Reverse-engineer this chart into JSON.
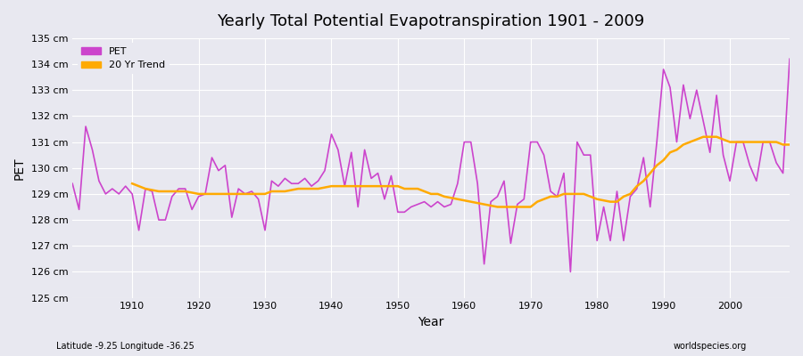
{
  "title": "Yearly Total Potential Evapotranspiration 1901 - 2009",
  "xlabel": "Year",
  "ylabel": "PET",
  "subtitle_left": "Latitude -9.25 Longitude -36.25",
  "subtitle_right": "worldspecies.org",
  "ylim": [
    125,
    135
  ],
  "ytick_labels": [
    "125 cm",
    "126 cm",
    "127 cm",
    "128 cm",
    "129 cm",
    "130 cm",
    "131 cm",
    "132 cm",
    "133 cm",
    "134 cm",
    "135 cm"
  ],
  "ytick_values": [
    125,
    126,
    127,
    128,
    129,
    130,
    131,
    132,
    133,
    134,
    135
  ],
  "xlim": [
    1901,
    2009
  ],
  "pet_color": "#cc44cc",
  "trend_color": "#ffaa00",
  "bg_color": "#e8e8f0",
  "grid_color": "#ffffff",
  "legend_pet": "PET",
  "legend_trend": "20 Yr Trend",
  "years": [
    1901,
    1902,
    1903,
    1904,
    1905,
    1906,
    1907,
    1908,
    1909,
    1910,
    1911,
    1912,
    1913,
    1914,
    1915,
    1916,
    1917,
    1918,
    1919,
    1920,
    1921,
    1922,
    1923,
    1924,
    1925,
    1926,
    1927,
    1928,
    1929,
    1930,
    1931,
    1932,
    1933,
    1934,
    1935,
    1936,
    1937,
    1938,
    1939,
    1940,
    1941,
    1942,
    1943,
    1944,
    1945,
    1946,
    1947,
    1948,
    1949,
    1950,
    1951,
    1952,
    1953,
    1954,
    1955,
    1956,
    1957,
    1958,
    1959,
    1960,
    1961,
    1962,
    1963,
    1964,
    1965,
    1966,
    1967,
    1968,
    1969,
    1970,
    1971,
    1972,
    1973,
    1974,
    1975,
    1976,
    1977,
    1978,
    1979,
    1980,
    1981,
    1982,
    1983,
    1984,
    1985,
    1986,
    1987,
    1988,
    1989,
    1990,
    1991,
    1992,
    1993,
    1994,
    1995,
    1996,
    1997,
    1998,
    1999,
    2000,
    2001,
    2002,
    2003,
    2004,
    2005,
    2006,
    2007,
    2008,
    2009
  ],
  "pet_values": [
    129.4,
    128.4,
    131.6,
    130.7,
    129.5,
    129.0,
    129.2,
    129.0,
    129.3,
    129.0,
    127.6,
    129.2,
    129.1,
    128.0,
    128.0,
    128.9,
    129.2,
    129.2,
    128.4,
    128.9,
    129.0,
    130.4,
    129.9,
    130.1,
    128.1,
    129.2,
    129.0,
    129.1,
    128.8,
    127.6,
    129.5,
    129.3,
    129.6,
    129.4,
    129.4,
    129.6,
    129.3,
    129.5,
    129.9,
    131.3,
    130.7,
    129.3,
    130.6,
    128.5,
    130.7,
    129.6,
    129.8,
    128.8,
    129.7,
    128.3,
    128.3,
    128.5,
    128.6,
    128.7,
    128.5,
    128.7,
    128.5,
    128.6,
    129.4,
    131.0,
    131.0,
    129.4,
    126.3,
    128.7,
    128.9,
    129.5,
    127.1,
    128.6,
    128.8,
    131.0,
    131.0,
    130.5,
    129.1,
    128.9,
    129.8,
    126.0,
    131.0,
    130.5,
    130.5,
    127.2,
    128.5,
    127.2,
    129.1,
    127.2,
    128.9,
    129.2,
    130.4,
    128.5,
    131.0,
    133.8,
    133.1,
    131.0,
    133.2,
    131.9,
    133.0,
    131.8,
    130.6,
    132.8,
    130.5,
    129.5,
    131.0,
    131.0,
    130.1,
    129.5,
    131.0,
    131.0,
    130.2,
    129.8,
    134.2
  ],
  "trend_years": [
    1910,
    1911,
    1912,
    1913,
    1914,
    1915,
    1916,
    1917,
    1918,
    1919,
    1920,
    1921,
    1922,
    1923,
    1924,
    1925,
    1926,
    1927,
    1928,
    1929,
    1930,
    1931,
    1932,
    1933,
    1934,
    1935,
    1936,
    1937,
    1938,
    1939,
    1940,
    1941,
    1942,
    1943,
    1944,
    1945,
    1946,
    1947,
    1948,
    1949,
    1950,
    1951,
    1952,
    1953,
    1954,
    1955,
    1956,
    1957,
    1958,
    1959,
    1960,
    1961,
    1962,
    1963,
    1964,
    1965,
    1966,
    1967,
    1968,
    1969,
    1970,
    1971,
    1972,
    1973,
    1974,
    1975,
    1976,
    1977,
    1978,
    1979,
    1980,
    1981,
    1982,
    1983,
    1984,
    1985,
    1986,
    1987,
    1988,
    1989,
    1990,
    1991,
    1992,
    1993,
    1994,
    1995,
    1996,
    1997,
    1998,
    1999,
    2000,
    2001,
    2002,
    2003,
    2004,
    2005,
    2006,
    2007,
    2008,
    2009
  ],
  "trend_values": [
    129.4,
    129.3,
    129.2,
    129.15,
    129.1,
    129.1,
    129.1,
    129.1,
    129.1,
    129.05,
    129.0,
    129.0,
    129.0,
    129.0,
    129.0,
    129.0,
    129.0,
    129.0,
    129.0,
    129.0,
    129.0,
    129.1,
    129.1,
    129.1,
    129.15,
    129.2,
    129.2,
    129.2,
    129.2,
    129.25,
    129.3,
    129.3,
    129.3,
    129.3,
    129.3,
    129.3,
    129.3,
    129.3,
    129.3,
    129.3,
    129.3,
    129.2,
    129.2,
    129.2,
    129.1,
    129.0,
    129.0,
    128.9,
    128.85,
    128.8,
    128.75,
    128.7,
    128.65,
    128.6,
    128.55,
    128.5,
    128.5,
    128.5,
    128.5,
    128.5,
    128.5,
    128.7,
    128.8,
    128.9,
    128.9,
    129.0,
    129.0,
    129.0,
    129.0,
    128.9,
    128.8,
    128.75,
    128.7,
    128.7,
    128.9,
    129.0,
    129.3,
    129.5,
    129.8,
    130.1,
    130.3,
    130.6,
    130.7,
    130.9,
    131.0,
    131.1,
    131.2,
    131.2,
    131.2,
    131.1,
    131.0,
    131.0,
    131.0,
    131.0,
    131.0,
    131.0,
    131.0,
    131.0,
    130.9,
    130.9
  ]
}
